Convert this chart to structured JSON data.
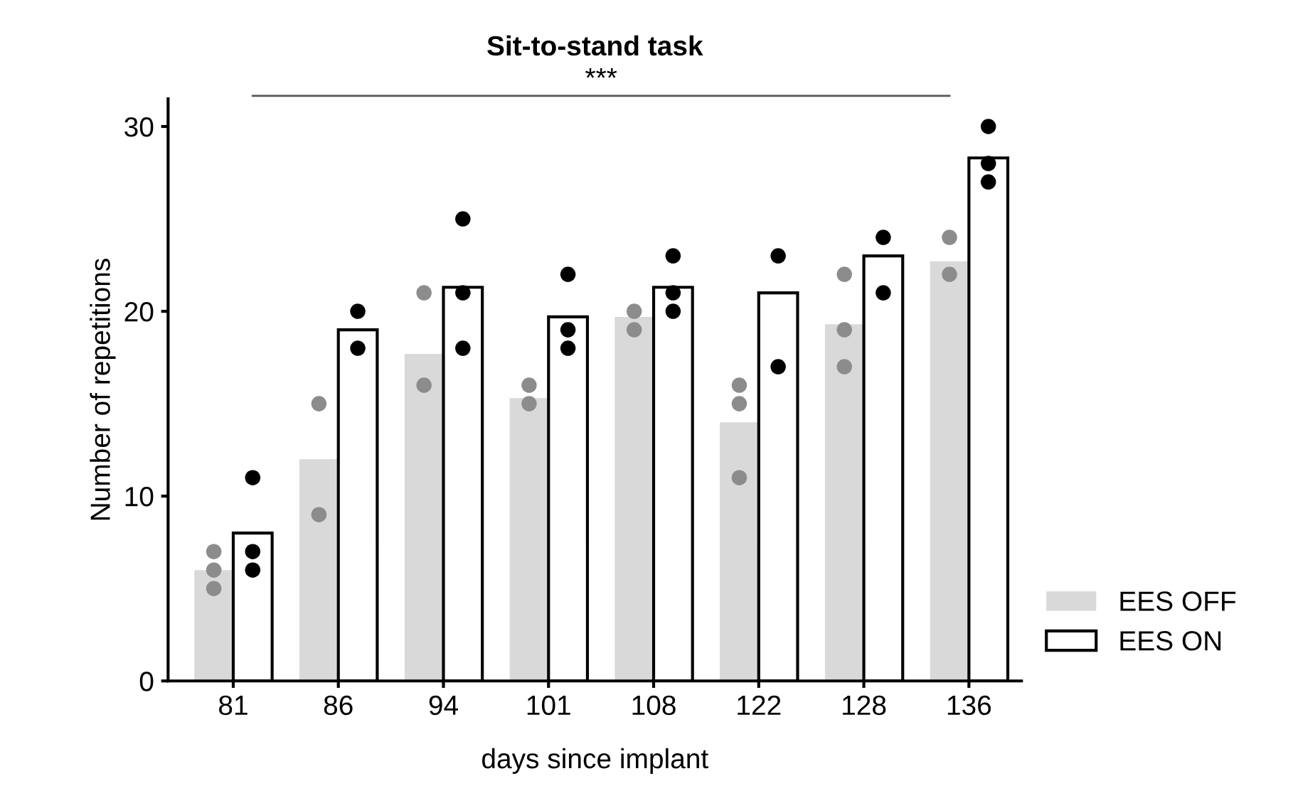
{
  "chart_data": {
    "type": "bar",
    "title": "Sit-to-stand task",
    "xlabel": "days since implant",
    "ylabel": "Number of repetitions",
    "categories": [
      "81",
      "86",
      "94",
      "101",
      "108",
      "122",
      "128",
      "136"
    ],
    "series": [
      {
        "name": "EES OFF",
        "color": "#d9d9d9",
        "values": [
          6,
          12,
          17.7,
          15.3,
          19.7,
          14,
          19.3,
          22.7
        ]
      },
      {
        "name": "EES ON",
        "color": "#ffffff",
        "values": [
          8,
          19,
          21.3,
          19.7,
          21.3,
          21,
          23,
          28.3
        ]
      },
      {
        "type": "scatter",
        "color": "#8c8c8c",
        "x": [
          "81",
          "81",
          "81",
          "86",
          "86",
          "94",
          "94",
          "101",
          "101",
          "108",
          "108",
          "122",
          "122",
          "122",
          "128",
          "128",
          "128",
          "136",
          "136"
        ],
        "values": [
          7,
          6,
          5,
          15,
          9,
          21,
          16,
          16,
          15,
          20,
          19,
          16,
          15,
          11,
          22,
          19,
          17,
          24,
          22
        ]
      },
      {
        "type": "scatter",
        "color": "#000000",
        "x": [
          "81",
          "81",
          "81",
          "86",
          "86",
          "94",
          "94",
          "94",
          "101",
          "101",
          "101",
          "108",
          "108",
          "108",
          "122",
          "122",
          "128",
          "128",
          "136",
          "136",
          "136"
        ],
        "values": [
          11,
          7,
          6,
          20,
          18,
          25,
          21,
          18,
          22,
          19,
          18,
          23,
          21,
          20,
          23,
          17,
          24,
          21,
          30,
          28,
          27
        ]
      }
    ],
    "ylim": [
      0,
      31.5
    ],
    "yticks": [
      0,
      10,
      20,
      30
    ],
    "grid": false,
    "legend": "bottom right",
    "annotations": [
      "***"
    ]
  }
}
